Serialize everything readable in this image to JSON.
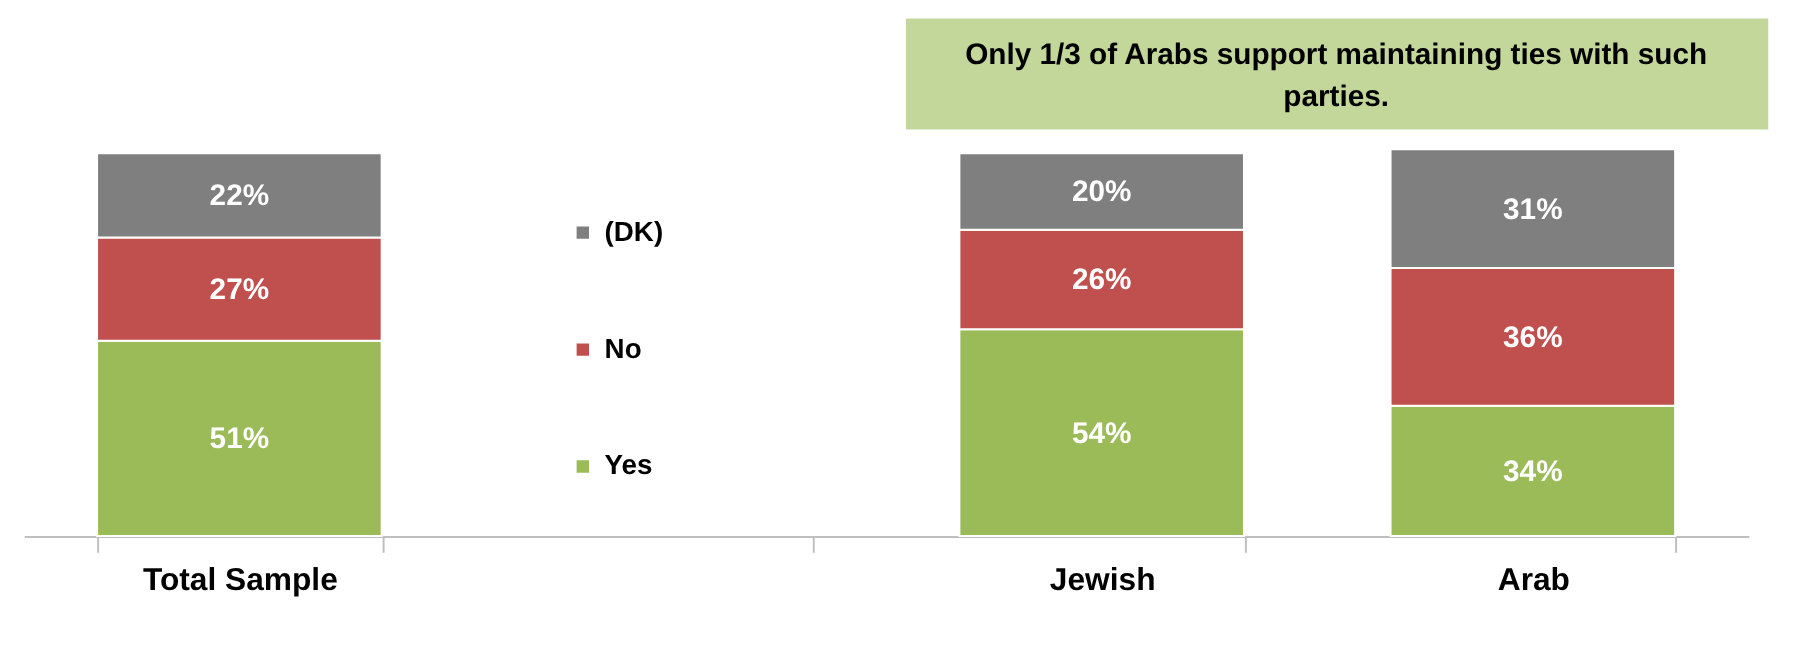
{
  "chart_data": {
    "type": "bar",
    "stacked": true,
    "legend": "center",
    "grid": false,
    "categories": [
      "Total Sample",
      null,
      "Jewish",
      "Arab"
    ],
    "series": [
      {
        "name": "Yes",
        "color": "#9bbb59",
        "values": [
          51,
          null,
          54,
          34
        ],
        "value_labels": [
          "51%",
          null,
          "54%",
          "34%"
        ]
      },
      {
        "name": "No",
        "color": "#c0504d",
        "values": [
          27,
          null,
          26,
          36
        ],
        "value_labels": [
          "27%",
          null,
          "26%",
          "36%"
        ]
      },
      {
        "name": "(DK)",
        "color": "#7f7f7f",
        "values": [
          22,
          null,
          20,
          31
        ],
        "value_labels": [
          "22%",
          null,
          "20%",
          "31%"
        ]
      }
    ],
    "annotations": [
      "Only 1/3 of Arabs support maintaining ties with such parties."
    ]
  }
}
